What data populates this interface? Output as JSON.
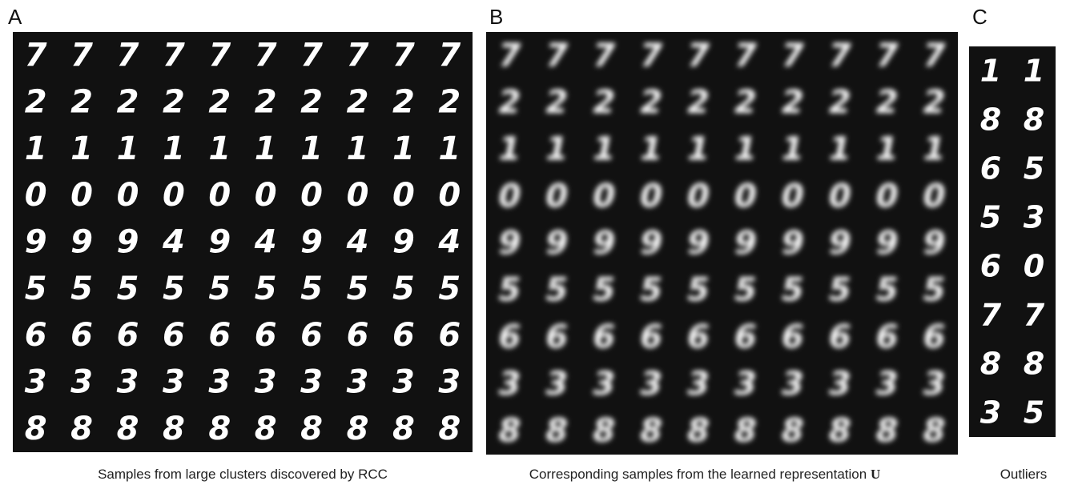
{
  "panels": [
    {
      "label": "A",
      "caption": "Samples from large clusters discovered by RCC",
      "rows": [
        "7777777777",
        "2222222222",
        "1111111111",
        "0000000000",
        "9994949494",
        "5555555555",
        "6666666666",
        "3333333333",
        "8888888888"
      ]
    },
    {
      "label": "B",
      "caption": "Corresponding samples from the learned representation",
      "caption_symbol": "U",
      "rows": [
        "7777777777",
        "2222222222",
        "1111111111",
        "0000000000",
        "9999999999",
        "5555555555",
        "6666666666",
        "3333333333",
        "8888888888"
      ]
    },
    {
      "label": "C",
      "caption": "Outliers",
      "rows": [
        "11",
        "88",
        "65",
        "53",
        "60",
        "77",
        "88",
        "35"
      ]
    }
  ]
}
